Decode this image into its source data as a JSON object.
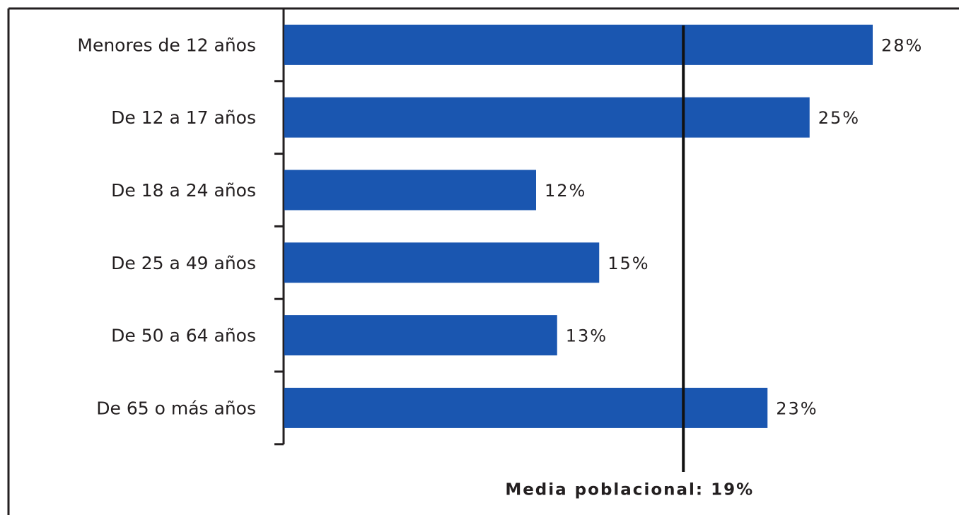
{
  "chart_data": {
    "type": "bar",
    "orientation": "horizontal",
    "categories": [
      "Menores de 12 años",
      "De 12 a 17 años",
      "De 18 a 24 años",
      "De 25 a 49 años",
      "De 50 a 64 años",
      "De 65 o más años"
    ],
    "values": [
      28,
      25,
      12,
      15,
      13,
      23
    ],
    "value_labels": [
      "28%",
      "25%",
      "12%",
      "15%",
      "13%",
      "23%"
    ],
    "color": "#1a56b0",
    "reference_line": {
      "value": 19,
      "label": "Media poblacional: 19%"
    }
  }
}
